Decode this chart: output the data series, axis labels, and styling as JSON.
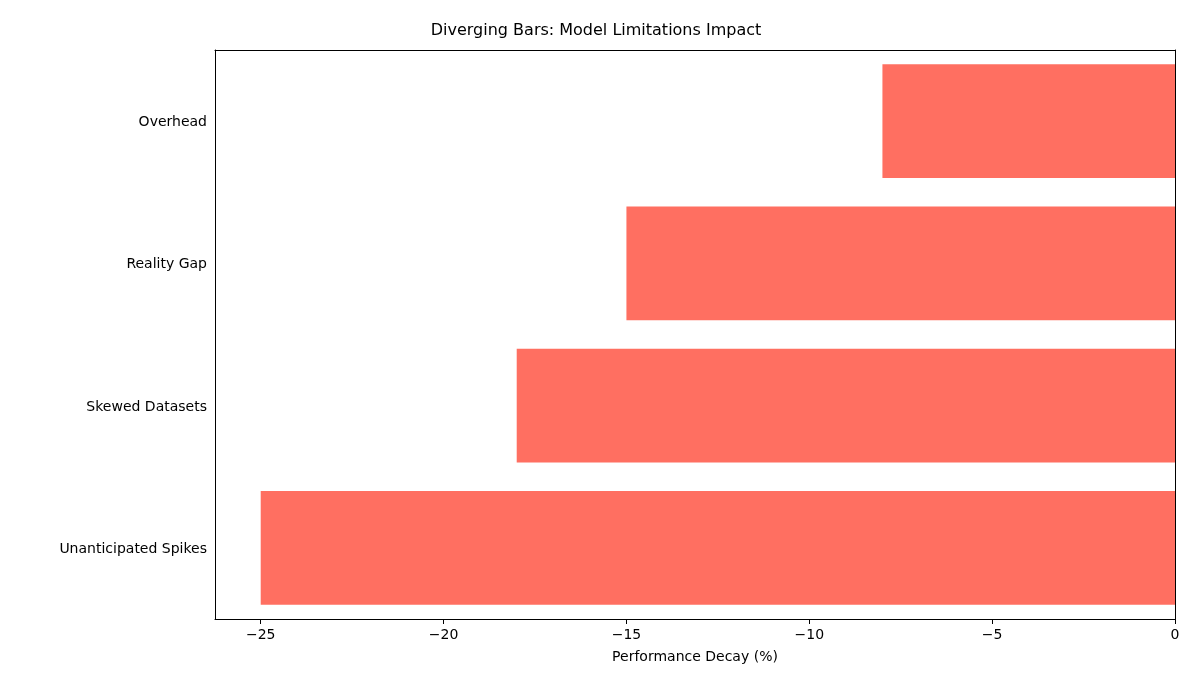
{
  "chart_data": {
    "type": "bar",
    "orientation": "horizontal",
    "title": "Diverging Bars: Model Limitations Impact",
    "xlabel": "Performance Decay (%)",
    "categories": [
      "Overhead",
      "Reality Gap",
      "Skewed Datasets",
      "Unanticipated Spikes"
    ],
    "values": [
      -8,
      -15,
      -18,
      -25
    ],
    "color": "#ff6f61",
    "xlim": [
      -26.25,
      0
    ],
    "xticks": [
      {
        "value": -25,
        "label": "−25"
      },
      {
        "value": -20,
        "label": "−20"
      },
      {
        "value": -15,
        "label": "−15"
      },
      {
        "value": -10,
        "label": "−10"
      },
      {
        "value": -5,
        "label": "−5"
      },
      0
    ]
  }
}
